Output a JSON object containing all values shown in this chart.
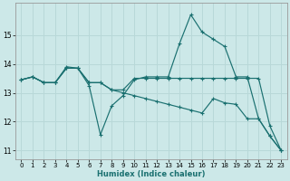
{
  "xlabel": "Humidex (Indice chaleur)",
  "xlim": [
    -0.5,
    23.5
  ],
  "ylim": [
    10.7,
    16.1
  ],
  "yticks": [
    11,
    12,
    13,
    14,
    15
  ],
  "xticks": [
    0,
    1,
    2,
    3,
    4,
    5,
    6,
    7,
    8,
    9,
    10,
    11,
    12,
    13,
    14,
    15,
    16,
    17,
    18,
    19,
    20,
    21,
    22,
    23
  ],
  "bg_color": "#cce8e8",
  "grid_color": "#b8d8d8",
  "line_color": "#1a7070",
  "series": [
    {
      "x": [
        0,
        1,
        2,
        3,
        4,
        5,
        6,
        7,
        8,
        9,
        10,
        11,
        12,
        13,
        14,
        15,
        16,
        17,
        18,
        19,
        20,
        21,
        22,
        23
      ],
      "y": [
        13.45,
        13.55,
        13.35,
        13.35,
        13.9,
        13.85,
        13.25,
        11.55,
        12.55,
        12.9,
        13.45,
        13.55,
        13.55,
        13.55,
        14.7,
        15.7,
        15.1,
        14.85,
        14.6,
        13.55,
        13.55,
        12.1,
        11.5,
        11.0
      ]
    },
    {
      "x": [
        0,
        1,
        2,
        3,
        4,
        5,
        6,
        7,
        8,
        9,
        10,
        11,
        12,
        13,
        14,
        15,
        16,
        17,
        18,
        19,
        20,
        21,
        22,
        23
      ],
      "y": [
        13.45,
        13.55,
        13.35,
        13.35,
        13.85,
        13.85,
        13.35,
        13.35,
        13.1,
        13.1,
        13.5,
        13.5,
        13.5,
        13.5,
        13.5,
        13.5,
        13.5,
        13.5,
        13.5,
        13.5,
        13.5,
        13.5,
        11.85,
        11.0
      ]
    },
    {
      "x": [
        0,
        1,
        2,
        3,
        4,
        5,
        6,
        7,
        8,
        9,
        10,
        11,
        12,
        13,
        14,
        15,
        16,
        17,
        18,
        19,
        20,
        21,
        22,
        23
      ],
      "y": [
        13.45,
        13.55,
        13.35,
        13.35,
        13.85,
        13.85,
        13.35,
        13.35,
        13.1,
        13.0,
        12.9,
        12.8,
        12.7,
        12.6,
        12.5,
        12.4,
        12.3,
        12.8,
        12.65,
        12.6,
        12.1,
        12.1,
        11.5,
        11.0
      ]
    }
  ]
}
